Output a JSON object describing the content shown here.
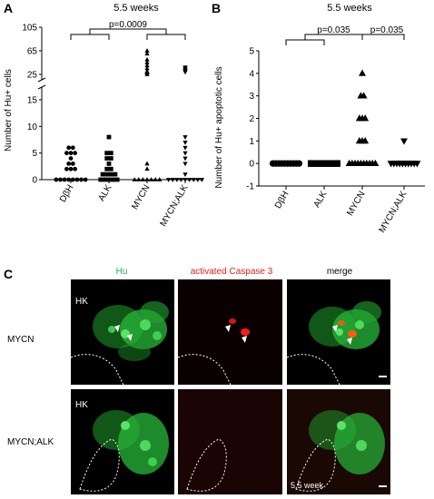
{
  "panels": {
    "A": {
      "letter": "A",
      "title": "5.5 weeks",
      "sig_label": "p=0.0009"
    },
    "B": {
      "letter": "B",
      "title": "5.5 weeks",
      "sig_labels": [
        "p=0.035",
        "p=0.035"
      ]
    },
    "C": {
      "letter": "C"
    }
  },
  "chart_data": [
    {
      "type": "scatter",
      "title": "5.5 weeks",
      "ylabel": "Number of Hu+ cells",
      "categories": [
        "DβH",
        "ALK",
        "MYCN",
        "MYCN;ALK"
      ],
      "yticks": [
        "0",
        "5",
        "10",
        "15",
        "25",
        "65",
        "105"
      ],
      "markers": [
        "circle",
        "square",
        "triangle",
        "triangle-down"
      ],
      "series": [
        {
          "values": [
            0,
            0,
            0,
            0,
            0,
            0,
            0,
            0,
            2,
            2,
            2,
            3,
            3,
            4,
            5,
            5,
            5,
            6,
            6
          ]
        },
        {
          "values": [
            0,
            0,
            0,
            0,
            0,
            1,
            1,
            1,
            1,
            2,
            2,
            3,
            4,
            4,
            5,
            5,
            8
          ]
        },
        {
          "values": [
            0,
            0,
            0,
            0,
            0,
            0,
            0,
            2,
            3,
            25,
            28,
            29,
            30,
            35,
            40,
            45,
            50,
            60,
            65
          ]
        },
        {
          "values": [
            0,
            0,
            0,
            0,
            0,
            0,
            0,
            0,
            0,
            1,
            3,
            4,
            5,
            6,
            7,
            8,
            29,
            31,
            33,
            35,
            37
          ]
        }
      ],
      "significance": {
        "label": "p=0.0009",
        "left_groups": [
          "DβH",
          "ALK"
        ],
        "right_groups": [
          "MYCN",
          "MYCN;ALK"
        ]
      }
    },
    {
      "type": "scatter",
      "title": "5.5 weeks",
      "ylabel": "Number of  Hu+ apoptotic cells",
      "categories": [
        "DβH",
        "ALK",
        "MYCN",
        "MYCN;ALK"
      ],
      "ylim": [
        -1,
        5
      ],
      "yticks": [
        "-1",
        "0",
        "1",
        "2",
        "3",
        "4",
        "5"
      ],
      "markers": [
        "circle",
        "square",
        "triangle",
        "triangle-down"
      ],
      "series": [
        {
          "values": [
            0,
            0,
            0,
            0,
            0,
            0,
            0,
            0,
            0,
            0,
            0,
            0,
            0,
            0,
            0,
            0,
            0,
            0,
            0,
            0
          ]
        },
        {
          "values": [
            0,
            0,
            0,
            0,
            0,
            0,
            0,
            0,
            0,
            0,
            0,
            0,
            0,
            0,
            0,
            0,
            0,
            0,
            0,
            0
          ]
        },
        {
          "values": [
            0,
            0,
            0,
            0,
            0,
            0,
            0,
            0,
            0,
            0,
            1,
            1,
            1,
            2,
            2,
            2,
            3,
            3,
            4
          ]
        },
        {
          "values": [
            0,
            0,
            0,
            0,
            0,
            0,
            0,
            0,
            0,
            0,
            0,
            0,
            0,
            0,
            1
          ]
        }
      ],
      "significance": [
        {
          "label": "p=0.035",
          "left_groups": [
            "DβH",
            "ALK"
          ],
          "right_groups": [
            "MYCN"
          ]
        },
        {
          "label": "p=0.035",
          "left_groups": [
            "MYCN"
          ],
          "right_groups": [
            "MYCN;ALK"
          ]
        }
      ]
    }
  ],
  "micrograph": {
    "columns": [
      "Hu",
      "activated Caspase 3",
      "merge"
    ],
    "column_colors": [
      "#22b14c",
      "#e8211d",
      "#000000"
    ],
    "rows": [
      "MYCN",
      "MYCN;ALK"
    ],
    "region_label": "HK",
    "time_label": "5.5 week"
  }
}
